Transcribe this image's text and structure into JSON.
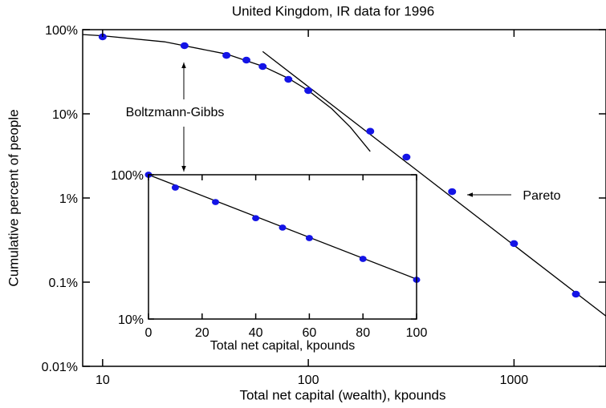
{
  "chart_data": [
    {
      "type": "scatter",
      "title": "United Kingdom, IR data for 1996",
      "xlabel": "Total net capital (wealth), kpounds",
      "ylabel": "Cumulative percent of people",
      "xscale": "log",
      "yscale": "log",
      "xlim": [
        8,
        2800
      ],
      "ylim": [
        0.01,
        100
      ],
      "xticks": [
        10,
        100,
        1000
      ],
      "yticks": [
        {
          "value": 100,
          "label": "100%"
        },
        {
          "value": 10,
          "label": "10%"
        },
        {
          "value": 1,
          "label": "1%"
        },
        {
          "value": 0.1,
          "label": "0.1%"
        },
        {
          "value": 0.01,
          "label": "0.01%"
        }
      ],
      "points": {
        "color": "#1414e6",
        "x": [
          10,
          25,
          40,
          50,
          60,
          80,
          100,
          200,
          300,
          500,
          1000,
          2000
        ],
        "values": [
          82,
          64.5,
          49.5,
          43.5,
          36.5,
          25.7,
          18.9,
          6.2,
          3.06,
          1.19,
          0.287,
          0.072
        ]
      },
      "fits": [
        {
          "color": "#000000",
          "x": [
            8,
            10,
            20,
            40,
            60,
            80,
            100,
            130,
            160,
            200
          ],
          "values": [
            87.5,
            84.6,
            71.7,
            51.3,
            36.8,
            26.4,
            18.9,
            11.5,
            6.95,
            3.57
          ]
        },
        {
          "color": "#000000",
          "x": [
            60,
            2800
          ],
          "values": [
            55,
            0.0395
          ]
        }
      ],
      "annotations": [
        {
          "text": "Boltzmann-Gibbs"
        },
        {
          "text": "Pareto"
        }
      ]
    },
    {
      "type": "scatter",
      "xlabel": "Total net capital, kpounds",
      "xscale": "linear",
      "yscale": "log",
      "xlim": [
        0,
        100
      ],
      "ylim": [
        10,
        100
      ],
      "xticks": [
        0,
        20,
        40,
        60,
        80,
        100
      ],
      "yticks": [
        {
          "value": 100,
          "label": "100%"
        },
        {
          "value": 10,
          "label": "10%"
        }
      ],
      "points": {
        "color": "#1414e6",
        "x": [
          0,
          10,
          25,
          40,
          50,
          60,
          80,
          100
        ],
        "values": [
          100,
          81.5,
          64.7,
          50,
          43,
          36.4,
          26.1,
          18.7
        ]
      },
      "fits": [
        {
          "color": "#000000",
          "x": [
            0,
            100
          ],
          "values": [
            100,
            18.9
          ]
        }
      ]
    }
  ]
}
